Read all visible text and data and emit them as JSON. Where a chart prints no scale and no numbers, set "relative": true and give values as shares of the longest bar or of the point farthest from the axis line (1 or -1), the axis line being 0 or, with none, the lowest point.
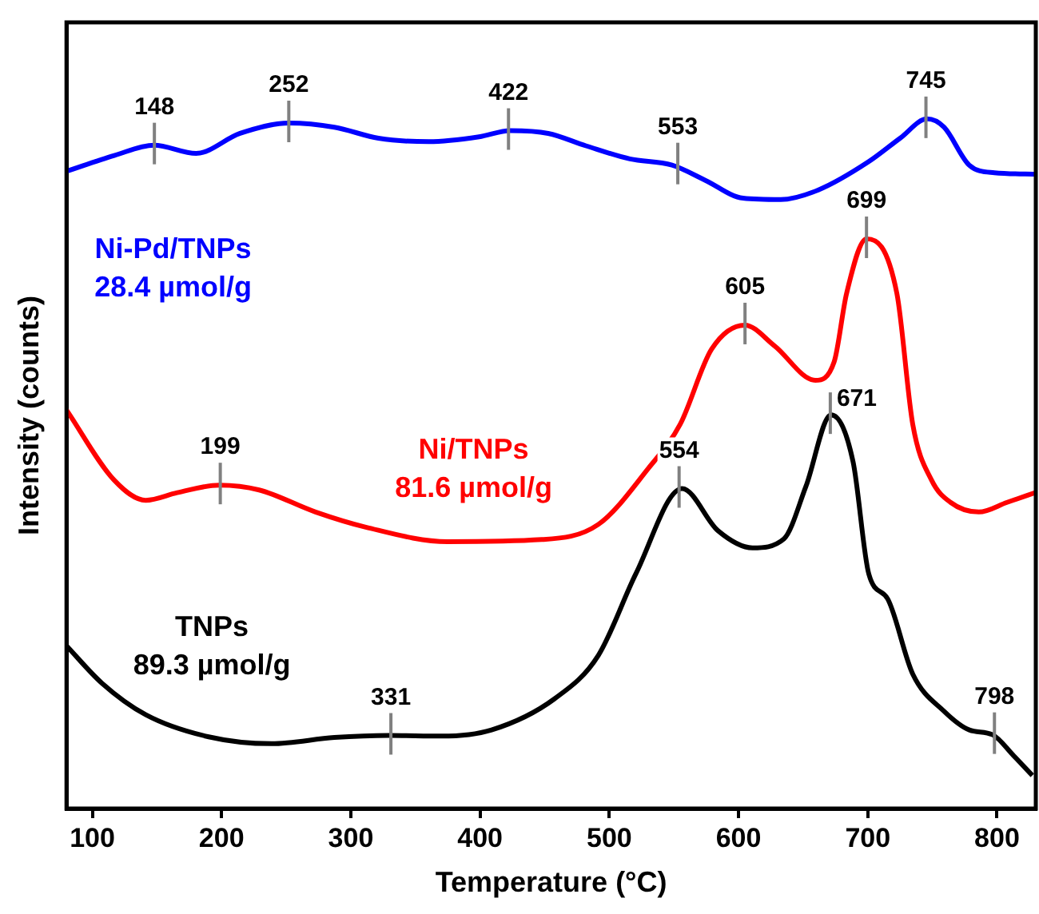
{
  "chart_data": {
    "type": "line",
    "xlabel": "Temperature (°C)",
    "ylabel": "Intensity (counts)",
    "relative": true,
    "xlim": [
      80,
      830
    ],
    "xticks": [
      100,
      200,
      300,
      400,
      500,
      600,
      700,
      800
    ],
    "tick_labels": "x",
    "grid": false,
    "legend": false,
    "marker": "none",
    "line_style": "solid",
    "series": [
      {
        "name": "Ni-Pd/TNPs\n28.4 µmol/g",
        "color": "#0000ff",
        "x": [
          80,
          117,
          147.7,
          180.3,
          214.3,
          252.3,
          287.3,
          321.4,
          360.3,
          399.2,
          423.5,
          452.7,
          481.9,
          515.9,
          548.5,
          574.3,
          603.5,
          632.6,
          661.8,
          700.7,
          725,
          745.9,
          759,
          778.5,
          798,
          829.6
        ],
        "values": [
          0.924,
          0.947,
          0.962,
          0.95,
          0.979,
          0.994,
          0.988,
          0.972,
          0.967,
          0.974,
          0.983,
          0.979,
          0.961,
          0.942,
          0.933,
          0.911,
          0.885,
          0.883,
          0.897,
          0.938,
          0.972,
          1.0,
          0.988,
          0.933,
          0.922,
          0.92
        ]
      },
      {
        "name": "Ni/TNPs\n81.6 µmol/g",
        "color": "#ff0000",
        "x": [
          80,
          117,
          141.3,
          165.7,
          198.3,
          229,
          272.7,
          311.6,
          374.8,
          447.8,
          491.5,
          530.5,
          554.8,
          579.1,
          604.9,
          627.8,
          659.4,
          674,
          683.6,
          699,
          722.5,
          734.8,
          749.4,
          764,
          785.9,
          807.8,
          829.6
        ],
        "values": [
          0.578,
          0.476,
          0.447,
          0.458,
          0.469,
          0.462,
          0.43,
          0.408,
          0.387,
          0.39,
          0.412,
          0.494,
          0.557,
          0.666,
          0.701,
          0.671,
          0.621,
          0.648,
          0.747,
          0.826,
          0.747,
          0.557,
          0.476,
          0.444,
          0.43,
          0.444,
          0.458
        ]
      },
      {
        "name": "TNPs\n89.3 µmol/g",
        "color": "#000000",
        "x": [
          80,
          107.3,
          141.4,
          190,
          238.7,
          287.3,
          329.6,
          370,
          408.9,
          457.5,
          491.5,
          520.7,
          556.3,
          584,
          610.8,
          635.1,
          652.1,
          671.6,
          688.6,
          700.8,
          715.4,
          734.8,
          759.1,
          778.6,
          796.6,
          812.7,
          827.3
        ],
        "values": [
          0.236,
          0.182,
          0.136,
          0.104,
          0.094,
          0.103,
          0.106,
          0.105,
          0.114,
          0.159,
          0.222,
          0.341,
          0.464,
          0.403,
          0.378,
          0.391,
          0.467,
          0.571,
          0.503,
          0.34,
          0.304,
          0.195,
          0.141,
          0.114,
          0.107,
          0.077,
          0.048
        ]
      }
    ],
    "annotations": [
      {
        "text": "148",
        "x": 148,
        "y": 0.962
      },
      {
        "text": "252",
        "x": 252,
        "y": 0.994
      },
      {
        "text": "422",
        "x": 422,
        "y": 0.983
      },
      {
        "text": "553",
        "x": 553,
        "y": 0.933
      },
      {
        "text": "745",
        "x": 745,
        "y": 1.0
      },
      {
        "text": "199",
        "x": 199,
        "y": 0.469
      },
      {
        "text": "605",
        "x": 605,
        "y": 0.701
      },
      {
        "text": "699",
        "x": 699,
        "y": 0.826
      },
      {
        "text": "554",
        "x": 554,
        "y": 0.464
      },
      {
        "text": "671",
        "x": 671,
        "y": 0.571
      },
      {
        "text": "331",
        "x": 331,
        "y": 0.106
      },
      {
        "text": "798",
        "x": 798,
        "y": 0.107
      }
    ]
  }
}
